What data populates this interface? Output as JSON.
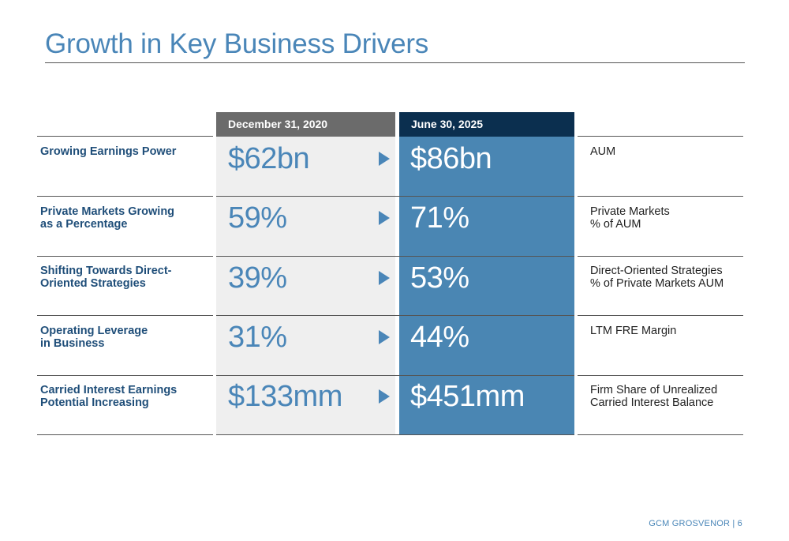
{
  "title": "Growth in Key Business Drivers",
  "columns": {
    "old_header": "December 31, 2020",
    "new_header": "June 30, 2025"
  },
  "rows": [
    {
      "label_lines": [
        "Growing Earnings Power"
      ],
      "old_value": "$62bn",
      "new_value": "$86bn",
      "desc_lines": [
        "AUM"
      ]
    },
    {
      "label_lines": [
        "Private Markets Growing",
        "as a Percentage"
      ],
      "old_value": "59%",
      "new_value": "71%",
      "desc_lines": [
        "Private Markets",
        "% of AUM"
      ]
    },
    {
      "label_lines": [
        "Shifting Towards Direct-",
        "Oriented Strategies"
      ],
      "old_value": "39%",
      "new_value": "53%",
      "desc_lines": [
        "Direct-Oriented Strategies",
        "% of Private Markets AUM"
      ]
    },
    {
      "label_lines": [
        "Operating Leverage",
        "in Business"
      ],
      "old_value": "31%",
      "new_value": "44%",
      "desc_lines": [
        "LTM FRE Margin"
      ]
    },
    {
      "label_lines": [
        "Carried Interest Earnings",
        "Potential Increasing"
      ],
      "old_value": "$133mm",
      "new_value": "$451mm",
      "desc_lines": [
        "Firm Share of Unrealized",
        "Carried Interest Balance"
      ]
    }
  ],
  "footer": "GCM GROSVENOR | 6",
  "colors": {
    "accent": "#4a86b8",
    "old_header_bg": "#6b6b6b",
    "new_header_bg": "#0b2f4f",
    "new_column_bg": "#4a86b3",
    "old_column_bg": "#efefef",
    "label_text": "#1f4e79"
  }
}
